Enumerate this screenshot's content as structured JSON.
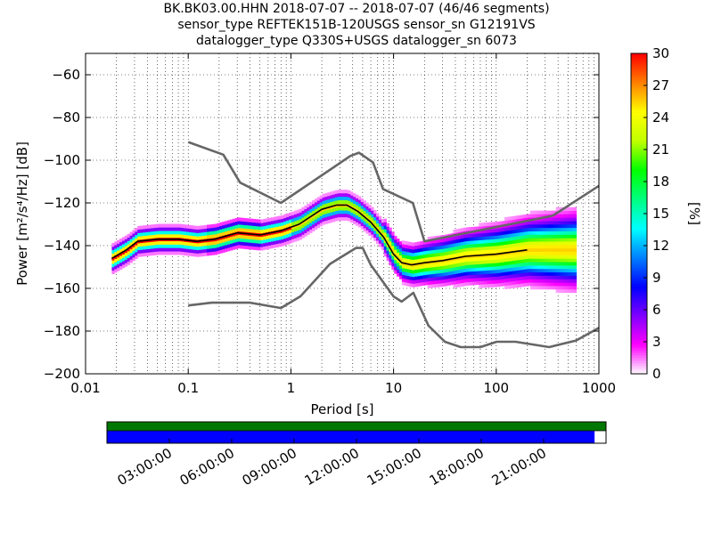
{
  "title_lines": [
    "BK.BK03.00.HHN   2018-07-07 -- 2018-07-07  (46/46 segments)",
    "sensor_type REFTEK151B-120USGS sensor_sn G12191VS",
    "datalogger_type Q330S+USGS datalogger_sn 6073"
  ],
  "chart_data": [
    {
      "type": "heatmap",
      "title": "BK.BK03.00.HHN   2018-07-07 -- 2018-07-07  (46/46 segments)",
      "xlabel": "Period [s]",
      "ylabel": "Power [m²/s⁴/Hz] [dB]",
      "xscale": "log",
      "xlim": [
        0.01,
        1000
      ],
      "ylim": [
        -200,
        -50
      ],
      "xticks": [
        0.01,
        0.1,
        1,
        10,
        100,
        1000
      ],
      "xtick_labels": [
        "0.01",
        "0.1",
        "1",
        "10",
        "100",
        "1000"
      ],
      "yticks": [
        -200,
        -180,
        -160,
        -140,
        -120,
        -100,
        -80,
        -60
      ],
      "ytick_labels": [
        "−200",
        "−180",
        "−160",
        "−140",
        "−120",
        "−100",
        "−80",
        "−60"
      ],
      "grid": true,
      "colorbar": {
        "label": "[%]",
        "range": [
          0,
          30
        ],
        "ticks": [
          0,
          3,
          6,
          9,
          12,
          15,
          18,
          21,
          24,
          27,
          30
        ],
        "tick_labels": [
          "0",
          "3",
          "6",
          "9",
          "12",
          "15",
          "18",
          "21",
          "24",
          "27",
          "30"
        ],
        "colormap": [
          "#ffffff",
          "#ff00ff",
          "#8000ff",
          "#0000ff",
          "#0080ff",
          "#00ffff",
          "#00ff80",
          "#00ff00",
          "#c0ff00",
          "#ffff00",
          "#ff8000",
          "#ff0000"
        ]
      },
      "series": [
        {
          "kind": "noise-model-high",
          "color": "#666666",
          "x": [
            0.1,
            0.22,
            0.32,
            0.8,
            3.8,
            4.6,
            6.3,
            7.9,
            15.4,
            20,
            354.8,
            1000
          ],
          "y": [
            -91.5,
            -97.4,
            -110.5,
            -120,
            -98,
            -96.5,
            -101,
            -113.5,
            -120,
            -138,
            -126,
            -112
          ]
        },
        {
          "kind": "noise-model-low",
          "color": "#666666",
          "x": [
            0.1,
            0.17,
            0.4,
            0.8,
            1.24,
            2.4,
            4.3,
            5.0,
            6.0,
            10,
            12,
            15.6,
            21.9,
            31.6,
            45,
            70,
            101,
            154,
            328,
            600,
            1000
          ],
          "y": [
            -168,
            -166.7,
            -166.7,
            -169.2,
            -163.7,
            -148.6,
            -141.1,
            -141.1,
            -149,
            -163.8,
            -166.2,
            -162.1,
            -177.5,
            -185,
            -187.5,
            -187.5,
            -185,
            -185,
            -187.5,
            -184.4,
            -178.5
          ]
        },
        {
          "kind": "mean",
          "color": "#000000",
          "x": [
            0.018,
            0.025,
            0.032,
            0.05,
            0.08,
            0.12,
            0.18,
            0.3,
            0.5,
            0.8,
            1.2,
            2,
            2.8,
            3.5,
            4.5,
            6,
            8,
            10,
            12,
            15,
            20,
            30,
            50,
            100,
            200
          ],
          "y": [
            -146,
            -142,
            -138,
            -137,
            -137,
            -138,
            -137,
            -134,
            -135,
            -133,
            -130,
            -123,
            -121,
            -121,
            -124,
            -129,
            -136,
            -144,
            -148,
            -149,
            -148,
            -147,
            -145,
            -144,
            -142
          ]
        }
      ]
    },
    {
      "type": "timeline",
      "tick_labels": [
        "03:00:00",
        "06:00:00",
        "09:00:00",
        "12:00:00",
        "15:00:00",
        "18:00:00",
        "21:00:00"
      ],
      "data_coverage_color": "#007700",
      "psd_coverage_color": "#0000ff",
      "data_coverage_fraction": 1.0,
      "psd_coverage_fraction": 0.977
    }
  ]
}
